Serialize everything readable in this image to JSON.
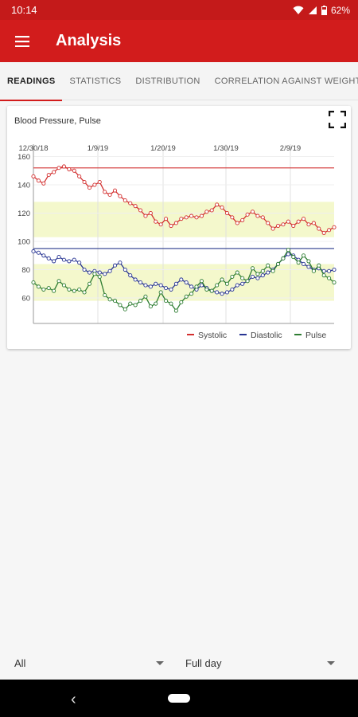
{
  "status": {
    "time": "10:14",
    "battery": "62%"
  },
  "app": {
    "title": "Analysis"
  },
  "tabs": [
    {
      "label": "READINGS"
    },
    {
      "label": "STATISTICS"
    },
    {
      "label": "DISTRIBUTION"
    },
    {
      "label": "CORRELATION AGAINST WEIGHT"
    }
  ],
  "card": {
    "title": "Blood Pressure, Pulse"
  },
  "chart_data": {
    "type": "line",
    "x_tick_labels": [
      "12/30/18",
      "1/9/19",
      "1/20/19",
      "1/30/19",
      "2/9/19"
    ],
    "y_tick_labels": [
      "160",
      "140",
      "120",
      "100",
      "80",
      "60"
    ],
    "ylim": [
      42,
      162
    ],
    "grid": true,
    "legend_position": "bottom-right",
    "reference_lines": [
      {
        "value": 152,
        "color": "#d64545"
      },
      {
        "value": 95,
        "color": "#2b3a8c"
      }
    ],
    "target_bands": [
      {
        "from": 103,
        "to": 128,
        "color": "#f4f8cc"
      },
      {
        "from": 58,
        "to": 84,
        "color": "#f4f8cc"
      }
    ],
    "series": [
      {
        "name": "Systolic",
        "color": "#d32f2f",
        "values": [
          146,
          143,
          141,
          147,
          149,
          152,
          153,
          151,
          150,
          146,
          142,
          138,
          140,
          142,
          135,
          133,
          136,
          132,
          129,
          127,
          125,
          122,
          118,
          120,
          114,
          112,
          116,
          111,
          113,
          116,
          117,
          118,
          117,
          118,
          121,
          122,
          126,
          124,
          120,
          117,
          113,
          115,
          119,
          121,
          118,
          117,
          113,
          109,
          111,
          112,
          114,
          111,
          114,
          116,
          112,
          113,
          109,
          106,
          108,
          110
        ]
      },
      {
        "name": "Diastolic",
        "color": "#283593",
        "values": [
          93,
          92,
          90,
          88,
          86,
          89,
          87,
          86,
          87,
          85,
          80,
          78,
          79,
          78,
          77,
          79,
          83,
          85,
          80,
          76,
          73,
          71,
          69,
          68,
          70,
          69,
          67,
          66,
          70,
          73,
          71,
          68,
          66,
          69,
          67,
          65,
          64,
          63,
          64,
          66,
          69,
          70,
          72,
          75,
          74,
          76,
          78,
          80,
          84,
          88,
          91,
          90,
          87,
          84,
          82,
          80,
          81,
          79,
          79,
          80
        ]
      },
      {
        "name": "Pulse",
        "color": "#2e7d32",
        "values": [
          71,
          68,
          66,
          67,
          65,
          72,
          69,
          66,
          65,
          66,
          64,
          70,
          77,
          75,
          62,
          59,
          58,
          55,
          52,
          56,
          55,
          58,
          61,
          54,
          56,
          64,
          58,
          56,
          51,
          57,
          61,
          63,
          68,
          72,
          66,
          65,
          69,
          73,
          70,
          75,
          78,
          74,
          72,
          81,
          77,
          79,
          83,
          79,
          84,
          88,
          94,
          89,
          85,
          90,
          86,
          79,
          83,
          76,
          74,
          71
        ]
      }
    ]
  },
  "filters": {
    "left_value": "All",
    "right_value": "Full day"
  },
  "icons": {
    "menu": "menu-icon",
    "expand": "fullscreen-icon",
    "dropdown": "dropdown-caret-icon"
  }
}
